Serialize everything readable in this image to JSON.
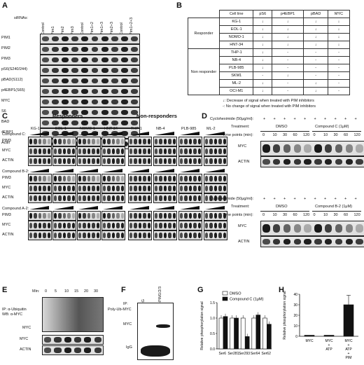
{
  "panels": {
    "A": {
      "label": "A",
      "sirnas_label": "siRNAs:",
      "lanes": [
        "Control",
        "Pim1",
        "Pim2",
        "Pim3",
        "Control",
        "Pim1+2",
        "Pim1+3",
        "Pim2+3",
        "Control",
        "Pim1+2+3"
      ],
      "rows": [
        "PIM1",
        "PIM2",
        "PIM3",
        "pS6(S240/244)",
        "pBAD(S112)",
        "p4EBP1(S65)",
        "MYC",
        "S6",
        "BAD",
        "4EBP1",
        "Actin"
      ]
    },
    "B": {
      "label": "B",
      "header": [
        "Cell line",
        "pS6",
        "p4EBP1",
        "pBAD",
        "MYC"
      ],
      "group_responder": "Responder",
      "group_nonresponder": "Non responder",
      "rows": [
        {
          "cell": "KG-1",
          "v": [
            "↓",
            "↓",
            "↓",
            "↓"
          ]
        },
        {
          "cell": "EOL-1",
          "v": [
            "↓",
            "↓",
            "↓",
            "↓"
          ]
        },
        {
          "cell": "NOMO-1",
          "v": [
            "↓",
            "↓",
            "↓",
            "↓"
          ]
        },
        {
          "cell": "HNT-34",
          "v": [
            "↓",
            "↓",
            "↓",
            "↓"
          ]
        },
        {
          "cell": "THP-1",
          "v": [
            "↓",
            "-",
            "-",
            "-"
          ]
        },
        {
          "cell": "NB-4",
          "v": [
            "↓",
            "-",
            "-",
            "-"
          ]
        },
        {
          "cell": "PLB-985",
          "v": [
            "↓",
            "-",
            "-",
            "-"
          ]
        },
        {
          "cell": "SKM1",
          "v": [
            "-",
            "↓",
            "-",
            "-"
          ]
        },
        {
          "cell": "ML-2",
          "v": [
            "↓",
            "-",
            "↓",
            "-"
          ]
        },
        {
          "cell": "OCI-M1",
          "v": [
            "↓",
            "-",
            "↓",
            "-"
          ]
        }
      ],
      "legend1": "↓: Decrease of signal  when treated with PIM inhibitors",
      "legend2": "-: No change of signal when treated with PIM inhibitors"
    },
    "C": {
      "label": "C",
      "responders": "Responders",
      "nonresponders": "Non-responders",
      "cells": [
        "KG-1",
        "EOL-1",
        "NOMO-1",
        "HNT-34",
        "THP-1",
        "NB-4",
        "PLB-985",
        "ML-2"
      ],
      "compounds": [
        {
          "name": "Compound C:",
          "rows": [
            "PIM3",
            "MYC",
            "ACTIN"
          ]
        },
        {
          "name": "Compound B-2:",
          "rows": [
            "PIM3",
            "MYC",
            "ACTIN"
          ]
        },
        {
          "name": "Compound A-2:",
          "rows": [
            "PIM3",
            "MYC",
            "ACTIN"
          ]
        }
      ]
    },
    "D": {
      "label": "D",
      "chx": "Cycloheximide (50μg/ml):",
      "plus": "+",
      "treatment": "Treatment:",
      "dmso": "DMSO",
      "compC": "Compound C (1μM)",
      "compB2": "Compound B-2 (1μM)",
      "timepoints": "Time points (min):",
      "times": [
        "0",
        "10",
        "30",
        "60",
        "120",
        "0",
        "10",
        "30",
        "60",
        "120"
      ],
      "rows": [
        "MYC",
        "ACTIN"
      ]
    },
    "E": {
      "label": "E",
      "min": "Min:",
      "times": [
        "0",
        "5",
        "10",
        "15",
        "20",
        "30"
      ],
      "ip": "IP: α-Ubiquitin",
      "wb": "WB: α-MYC",
      "polyub": "Poly-Ub-MYC",
      "rows": [
        "MYC",
        "MYC",
        "ACTIN"
      ]
    },
    "F": {
      "label": "F",
      "ip": "IP:",
      "lanes": [
        "IgG",
        "α-PIM1/2/3"
      ],
      "myc": "MYC",
      "igg": "IgG"
    },
    "G": {
      "label": "G",
      "ylabel": "Relative phosphorylation signal"
    },
    "H": {
      "label": "H",
      "ylabel": "Relative phosphorylation signal"
    }
  },
  "chart_data": [
    {
      "type": "bar",
      "panel": "G",
      "categories": [
        "Ser6",
        "Ser281",
        "Ser293",
        "Ser64",
        "Ser62"
      ],
      "series": [
        {
          "name": "DMSO",
          "values": [
            1.0,
            1.0,
            1.0,
            1.0,
            1.0
          ],
          "color": "#ffffff"
        },
        {
          "name": "Compound C (1μM)",
          "values": [
            1.05,
            1.0,
            0.4,
            1.1,
            0.8
          ],
          "color": "#111111"
        }
      ],
      "ylim": [
        0,
        1.5
      ],
      "yticks": [
        "0.0",
        "0.5",
        "1.0",
        "1.5"
      ],
      "ylabel": "Relative phosphorylation signal"
    },
    {
      "type": "bar",
      "panel": "H",
      "categories": [
        "MYC",
        "MYC + ATP",
        "MYC + ATP + PIM"
      ],
      "values": [
        1,
        1,
        30
      ],
      "error": [
        0,
        0,
        9
      ],
      "ylim": [
        0,
        40
      ],
      "yticks": [
        "0",
        "10",
        "20",
        "30",
        "40"
      ],
      "ylabel": "Relative phosphorylation signal"
    }
  ]
}
